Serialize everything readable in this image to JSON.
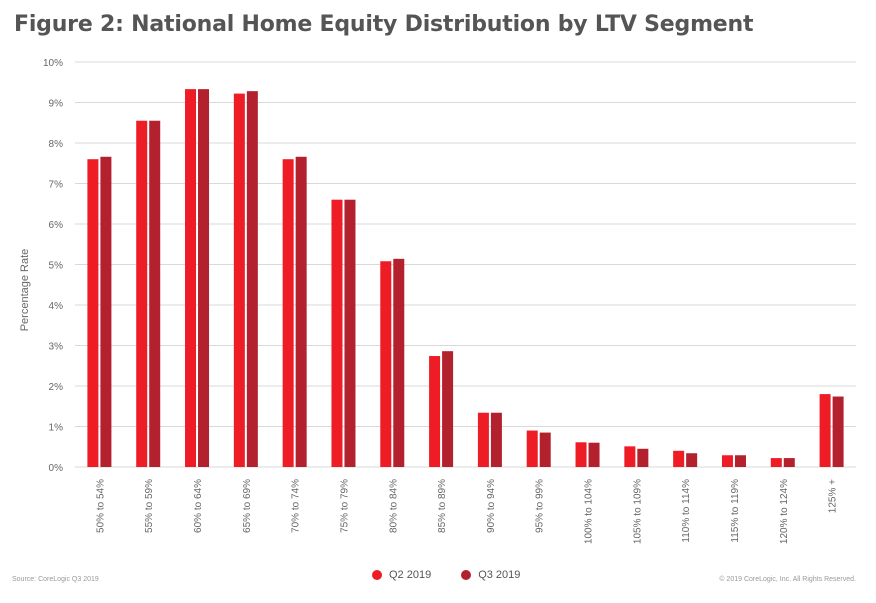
{
  "title": "Figure 2: National Home Equity Distribution by LTV Segment",
  "footer": {
    "source": "Source: CoreLogic Q3 2019",
    "copyright": "© 2019 CoreLogic, Inc. All Rights Reserved."
  },
  "colors": {
    "q2": "#ee1c25",
    "q3": "#b3202e",
    "grid": "#d9d9d9"
  },
  "chart_data": {
    "type": "bar",
    "ylabel": "Percentage Rate",
    "ylim": [
      0,
      10
    ],
    "yticks": [
      "0%",
      "1%",
      "2%",
      "3%",
      "4%",
      "5%",
      "6%",
      "7%",
      "8%",
      "9%",
      "10%"
    ],
    "categories": [
      "50% to 54%",
      "55% to 59%",
      "60% to 64%",
      "65% to 69%",
      "70% to 74%",
      "75% to 79%",
      "80% to 84%",
      "85% to 89%",
      "90% to 94%",
      "95% to 99%",
      "100% to 104%",
      "105% to 109%",
      "110% to 114%",
      "115% to 119%",
      "120% to 124%",
      "125% +"
    ],
    "series": [
      {
        "name": "Q2 2019",
        "values": [
          7.6,
          8.55,
          9.33,
          9.22,
          7.6,
          6.6,
          5.08,
          2.74,
          1.34,
          0.9,
          0.61,
          0.51,
          0.4,
          0.29,
          0.22,
          1.8
        ]
      },
      {
        "name": "Q3 2019",
        "values": [
          7.66,
          8.55,
          9.33,
          9.28,
          7.66,
          6.6,
          5.14,
          2.86,
          1.34,
          0.85,
          0.6,
          0.45,
          0.34,
          0.29,
          0.22,
          1.74
        ]
      }
    ],
    "grid": true,
    "legend": "bottom-center"
  }
}
